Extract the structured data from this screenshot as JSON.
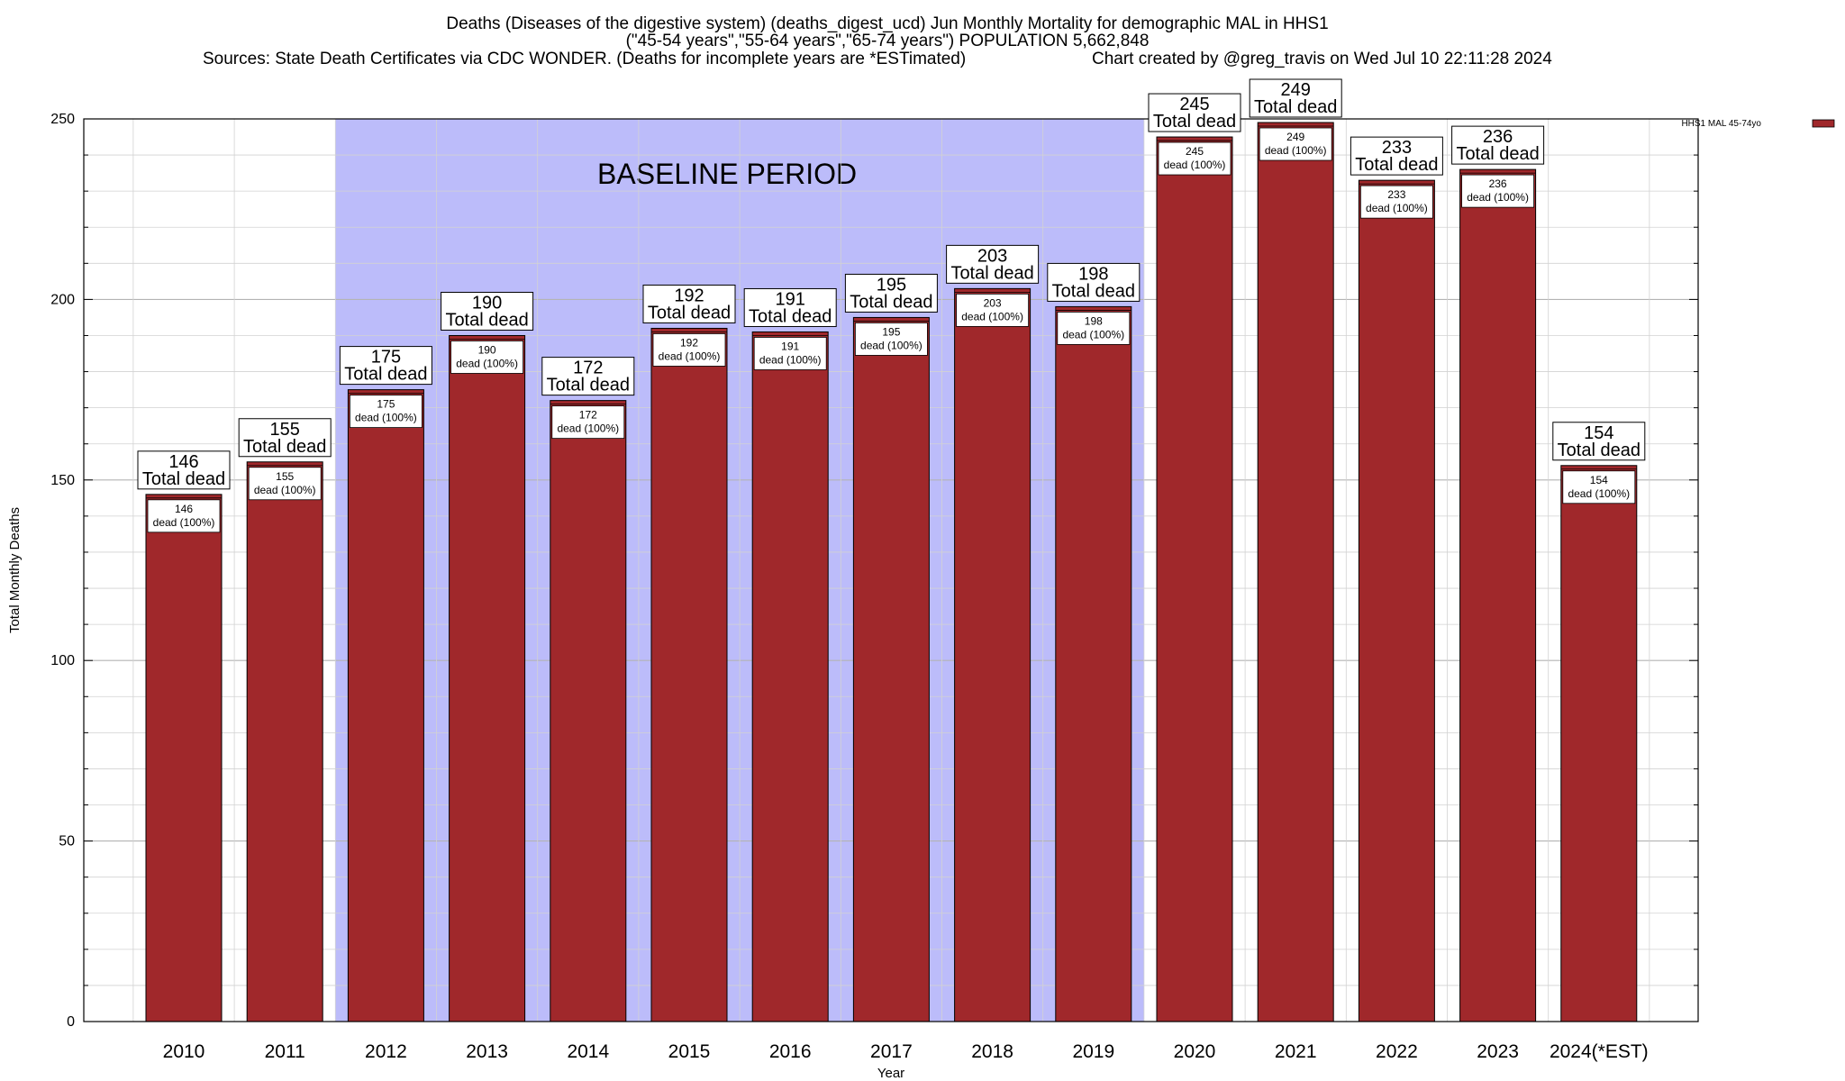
{
  "titles": {
    "line1": "Deaths (Diseases of the digestive system) (deaths_digest_ucd) Jun Monthly Mortality for demographic MAL in HHS1",
    "line2": "(\"45-54 years\",\"55-64 years\",\"65-74 years\") POPULATION 5,662,848",
    "line3_left": "Sources: State Death Certificates via CDC WONDER. (Deaths for incomplete years are *ESTimated)",
    "line3_right": "Chart created by @greg_travis on Wed Jul 10 22:11:28 2024"
  },
  "chart_data": {
    "type": "bar",
    "categories": [
      "2010",
      "2011",
      "2012",
      "2013",
      "2014",
      "2015",
      "2016",
      "2017",
      "2018",
      "2019",
      "2020",
      "2021",
      "2022",
      "2023",
      "2024(*EST)"
    ],
    "series": [
      {
        "name": "HHS1 MAL 45-74yo",
        "values": [
          146,
          155,
          175,
          190,
          172,
          192,
          191,
          195,
          203,
          198,
          245,
          249,
          233,
          236,
          154
        ],
        "color": "#a0282b"
      }
    ],
    "xlabel": "Year",
    "ylabel": "Total Monthly Deaths",
    "ylim": [
      0,
      250
    ],
    "yticks": [
      0,
      50,
      100,
      150,
      200,
      250
    ],
    "minor_tick_step": 10,
    "grid": true,
    "legend_position": "top-right",
    "baseline_period": {
      "label": "BASELINE PERIOD",
      "start_category": "2012",
      "end_category": "2019",
      "color": "#bcbcfa"
    },
    "bar_top_label_suffix": "Total dead",
    "bar_inner_label_suffix": "dead (100%)"
  }
}
